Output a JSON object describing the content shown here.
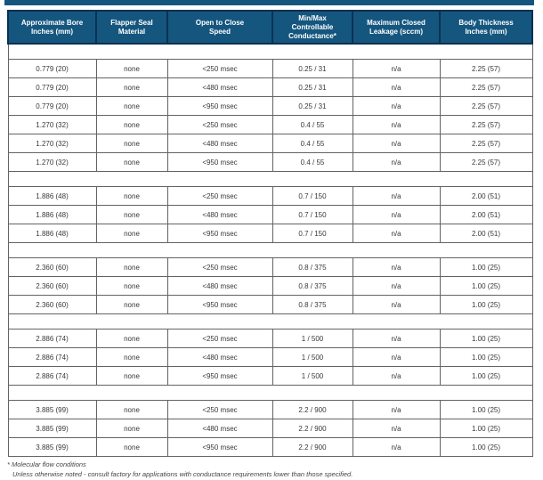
{
  "colors": {
    "accent_blue": "#15567F",
    "header_border_navy": "#0B3152",
    "grid_gray": "#636363"
  },
  "table": {
    "headers": [
      "Approximate Bore\nInches (mm)",
      "Flapper Seal\nMaterial",
      "Open to Close\nSpeed",
      "Min/Max\nControllable\nConductance*",
      "Maximum Closed\nLeakage (sccm)",
      "Body Thickness\nInches (mm)"
    ],
    "groups": [
      {
        "rows": [
          [
            "0.779 (20)",
            "none",
            "<250 msec",
            "0.25 / 31",
            "n/a",
            "2.25 (57)"
          ],
          [
            "0.779 (20)",
            "none",
            "<480 msec",
            "0.25 / 31",
            "n/a",
            "2.25 (57)"
          ],
          [
            "0.779 (20)",
            "none",
            "<950 msec",
            "0.25 / 31",
            "n/a",
            "2.25 (57)"
          ],
          [
            "1.270 (32)",
            "none",
            "<250 msec",
            "0.4 / 55",
            "n/a",
            "2.25 (57)"
          ],
          [
            "1.270 (32)",
            "none",
            "<480 msec",
            "0.4 / 55",
            "n/a",
            "2.25 (57)"
          ],
          [
            "1.270 (32)",
            "none",
            "<950 msec",
            "0.4 / 55",
            "n/a",
            "2.25 (57)"
          ]
        ]
      },
      {
        "rows": [
          [
            "1.886 (48)",
            "none",
            "<250 msec",
            "0.7 / 150",
            "n/a",
            "2.00 (51)"
          ],
          [
            "1.886 (48)",
            "none",
            "<480 msec",
            "0.7 / 150",
            "n/a",
            "2.00 (51)"
          ],
          [
            "1.886 (48)",
            "none",
            "<950 msec",
            "0.7 / 150",
            "n/a",
            "2.00 (51)"
          ]
        ]
      },
      {
        "rows": [
          [
            "2.360 (60)",
            "none",
            "<250 msec",
            "0.8 / 375",
            "n/a",
            "1.00 (25)"
          ],
          [
            "2.360 (60)",
            "none",
            "<480 msec",
            "0.8 / 375",
            "n/a",
            "1.00 (25)"
          ],
          [
            "2.360 (60)",
            "none",
            "<950 msec",
            "0.8 / 375",
            "n/a",
            "1.00 (25)"
          ]
        ]
      },
      {
        "rows": [
          [
            "2.886 (74)",
            "none",
            "<250 msec",
            "1 / 500",
            "n/a",
            "1.00 (25)"
          ],
          [
            "2.886 (74)",
            "none",
            "<480 msec",
            "1 / 500",
            "n/a",
            "1.00 (25)"
          ],
          [
            "2.886 (74)",
            "none",
            "<950 msec",
            "1 / 500",
            "n/a",
            "1.00 (25)"
          ]
        ]
      },
      {
        "rows": [
          [
            "3.885 (99)",
            "none",
            "<250 msec",
            "2.2 / 900",
            "n/a",
            "1.00 (25)"
          ],
          [
            "3.885 (99)",
            "none",
            "<480 msec",
            "2.2 / 900",
            "n/a",
            "1.00 (25)"
          ],
          [
            "3.885 (99)",
            "none",
            "<950 msec",
            "2.2 / 900",
            "n/a",
            "1.00 (25)"
          ]
        ]
      }
    ]
  },
  "footnotes": {
    "line1": "* Molecular flow conditions",
    "line2": "Unless otherwise noted - consult factory for applications with conductance requirements lower than those specified."
  }
}
